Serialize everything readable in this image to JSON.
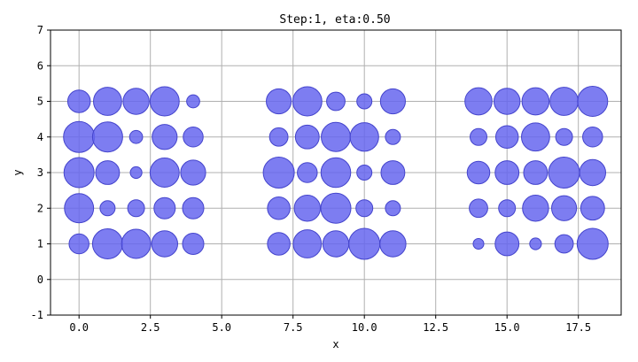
{
  "chart_data": {
    "type": "scatter",
    "title": "Step:1, eta:0.50",
    "xlabel": "x",
    "ylabel": "y",
    "xlim": [
      -1,
      19
    ],
    "ylim": [
      -1,
      7
    ],
    "xticks": [
      0.0,
      2.5,
      5.0,
      7.5,
      10.0,
      12.5,
      15.0,
      17.5
    ],
    "xtick_labels": [
      "0.0",
      "2.5",
      "5.0",
      "7.5",
      "10.0",
      "12.5",
      "15.0",
      "17.5"
    ],
    "yticks": [
      -1,
      0,
      1,
      2,
      3,
      4,
      5,
      6,
      7
    ],
    "ytick_labels": [
      "-1",
      "0",
      "1",
      "2",
      "3",
      "4",
      "5",
      "6",
      "7"
    ],
    "grid": true,
    "marker_color": "#6666ee",
    "marker_edge_color": "#4444cc",
    "size_unit": "relative marker size (0-1)",
    "points": [
      {
        "x": 0,
        "y": 5,
        "s": 0.45
      },
      {
        "x": 1,
        "y": 5,
        "s": 0.7
      },
      {
        "x": 2,
        "y": 5,
        "s": 0.6
      },
      {
        "x": 3,
        "y": 5,
        "s": 0.75
      },
      {
        "x": 4,
        "y": 5,
        "s": 0.15
      },
      {
        "x": 0,
        "y": 4,
        "s": 0.85
      },
      {
        "x": 1,
        "y": 4,
        "s": 0.8
      },
      {
        "x": 2,
        "y": 4,
        "s": 0.15
      },
      {
        "x": 3,
        "y": 4,
        "s": 0.55
      },
      {
        "x": 4,
        "y": 4,
        "s": 0.35
      },
      {
        "x": 0,
        "y": 3,
        "s": 0.8
      },
      {
        "x": 1,
        "y": 3,
        "s": 0.5
      },
      {
        "x": 2,
        "y": 3,
        "s": 0.12
      },
      {
        "x": 3,
        "y": 3,
        "s": 0.75
      },
      {
        "x": 4,
        "y": 3,
        "s": 0.55
      },
      {
        "x": 0,
        "y": 2,
        "s": 0.75
      },
      {
        "x": 1,
        "y": 2,
        "s": 0.2
      },
      {
        "x": 2,
        "y": 2,
        "s": 0.25
      },
      {
        "x": 3,
        "y": 2,
        "s": 0.4
      },
      {
        "x": 4,
        "y": 2,
        "s": 0.4
      },
      {
        "x": 0,
        "y": 1,
        "s": 0.35
      },
      {
        "x": 1,
        "y": 1,
        "s": 0.8
      },
      {
        "x": 2,
        "y": 1,
        "s": 0.75
      },
      {
        "x": 3,
        "y": 1,
        "s": 0.6
      },
      {
        "x": 4,
        "y": 1,
        "s": 0.4
      },
      {
        "x": 7,
        "y": 5,
        "s": 0.55
      },
      {
        "x": 8,
        "y": 5,
        "s": 0.75
      },
      {
        "x": 9,
        "y": 5,
        "s": 0.3
      },
      {
        "x": 10,
        "y": 5,
        "s": 0.2
      },
      {
        "x": 11,
        "y": 5,
        "s": 0.55
      },
      {
        "x": 7,
        "y": 4,
        "s": 0.3
      },
      {
        "x": 8,
        "y": 4,
        "s": 0.5
      },
      {
        "x": 9,
        "y": 4,
        "s": 0.75
      },
      {
        "x": 10,
        "y": 4,
        "s": 0.72
      },
      {
        "x": 11,
        "y": 4,
        "s": 0.2
      },
      {
        "x": 7,
        "y": 3,
        "s": 0.85
      },
      {
        "x": 8,
        "y": 3,
        "s": 0.35
      },
      {
        "x": 9,
        "y": 3,
        "s": 0.78
      },
      {
        "x": 10,
        "y": 3,
        "s": 0.2
      },
      {
        "x": 11,
        "y": 3,
        "s": 0.5
      },
      {
        "x": 7,
        "y": 2,
        "s": 0.45
      },
      {
        "x": 8,
        "y": 2,
        "s": 0.6
      },
      {
        "x": 9,
        "y": 2,
        "s": 0.8
      },
      {
        "x": 10,
        "y": 2,
        "s": 0.25
      },
      {
        "x": 11,
        "y": 2,
        "s": 0.2
      },
      {
        "x": 7,
        "y": 1,
        "s": 0.45
      },
      {
        "x": 8,
        "y": 1,
        "s": 0.7
      },
      {
        "x": 9,
        "y": 1,
        "s": 0.6
      },
      {
        "x": 10,
        "y": 1,
        "s": 0.85
      },
      {
        "x": 11,
        "y": 1,
        "s": 0.6
      },
      {
        "x": 14,
        "y": 5,
        "s": 0.65
      },
      {
        "x": 15,
        "y": 5,
        "s": 0.6
      },
      {
        "x": 16,
        "y": 5,
        "s": 0.65
      },
      {
        "x": 17,
        "y": 5,
        "s": 0.7
      },
      {
        "x": 18,
        "y": 5,
        "s": 0.8
      },
      {
        "x": 14,
        "y": 4,
        "s": 0.25
      },
      {
        "x": 15,
        "y": 4,
        "s": 0.45
      },
      {
        "x": 16,
        "y": 4,
        "s": 0.7
      },
      {
        "x": 17,
        "y": 4,
        "s": 0.25
      },
      {
        "x": 18,
        "y": 4,
        "s": 0.35
      },
      {
        "x": 14,
        "y": 3,
        "s": 0.45
      },
      {
        "x": 15,
        "y": 3,
        "s": 0.5
      },
      {
        "x": 16,
        "y": 3,
        "s": 0.5
      },
      {
        "x": 17,
        "y": 3,
        "s": 0.85
      },
      {
        "x": 18,
        "y": 3,
        "s": 0.6
      },
      {
        "x": 14,
        "y": 2,
        "s": 0.3
      },
      {
        "x": 15,
        "y": 2,
        "s": 0.25
      },
      {
        "x": 16,
        "y": 2,
        "s": 0.6
      },
      {
        "x": 17,
        "y": 2,
        "s": 0.55
      },
      {
        "x": 18,
        "y": 2,
        "s": 0.5
      },
      {
        "x": 14,
        "y": 1,
        "s": 0.1
      },
      {
        "x": 15,
        "y": 1,
        "s": 0.5
      },
      {
        "x": 16,
        "y": 1,
        "s": 0.12
      },
      {
        "x": 17,
        "y": 1,
        "s": 0.3
      },
      {
        "x": 18,
        "y": 1,
        "s": 0.85
      }
    ]
  }
}
